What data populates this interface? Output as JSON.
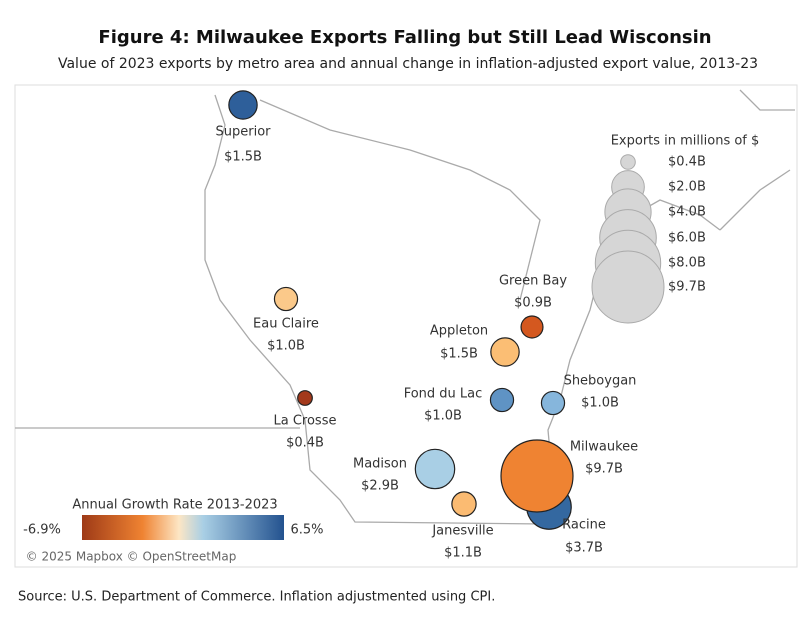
{
  "title": "Figure 4: Milwaukee Exports Falling but Still Lead Wisconsin",
  "subtitle": "Value of 2023 exports by metro area and annual change in inflation-adjusted export value, 2013-23",
  "map": {
    "metros": [
      {
        "name": "Superior",
        "value": 1.5,
        "value_label": "$1.5B",
        "color": "#2e5f9a"
      },
      {
        "name": "Eau Claire",
        "value": 1.0,
        "value_label": "$1.0B",
        "color": "#fbc98a"
      },
      {
        "name": "La Crosse",
        "value": 0.4,
        "value_label": "$0.4B",
        "color": "#a3391b"
      },
      {
        "name": "Green Bay",
        "value": 0.9,
        "value_label": "$0.9B",
        "color": "#d4581f"
      },
      {
        "name": "Appleton",
        "value": 1.5,
        "value_label": "$1.5B",
        "color": "#fbbe74"
      },
      {
        "name": "Fond du Lac",
        "value": 1.0,
        "value_label": "$1.0B",
        "color": "#5f93c4"
      },
      {
        "name": "Sheboygan",
        "value": 1.0,
        "value_label": "$1.0B",
        "color": "#86b6dc"
      },
      {
        "name": "Racine",
        "value": 3.7,
        "value_label": "$3.7B",
        "color": "#3468a0"
      },
      {
        "name": "Milwaukee",
        "value": 9.7,
        "value_label": "$9.7B",
        "color": "#ef8332"
      },
      {
        "name": "Madison",
        "value": 2.9,
        "value_label": "$2.9B",
        "color": "#a9cfe5"
      },
      {
        "name": "Janesville",
        "value": 1.1,
        "value_label": "$1.1B",
        "color": "#fbbb72"
      }
    ]
  },
  "size_legend": {
    "title": "Exports in millions of $",
    "items": [
      {
        "value": 0.4,
        "label": "$0.4B"
      },
      {
        "value": 2.0,
        "label": "$2.0B"
      },
      {
        "value": 4.0,
        "label": "$4.0B"
      },
      {
        "value": 6.0,
        "label": "$6.0B"
      },
      {
        "value": 8.0,
        "label": "$8.0B"
      },
      {
        "value": 9.7,
        "label": "$9.7B"
      }
    ]
  },
  "color_legend": {
    "title": "Annual Growth Rate 2013-2023",
    "min": {
      "value": -6.9,
      "label": "-6.9%"
    },
    "max": {
      "value": 6.5,
      "label": "6.5%"
    }
  },
  "attribution": "© 2025 Mapbox © OpenStreetMap",
  "source": "Source: U.S. Department of Commerce. Inflation adjustmented using CPI."
}
